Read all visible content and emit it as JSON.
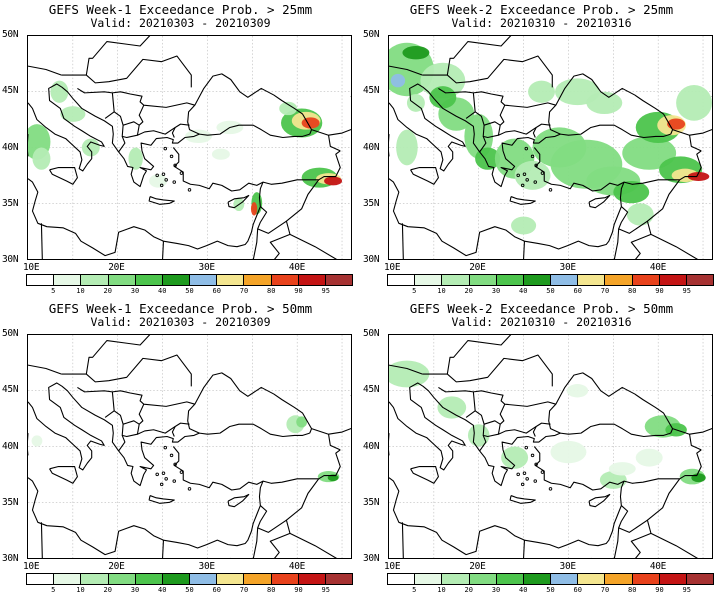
{
  "colorbar": {
    "labels": [
      "5",
      "10",
      "20",
      "30",
      "40",
      "50",
      "60",
      "70",
      "80",
      "90",
      "95"
    ],
    "colors": [
      "#ffffff",
      "#e6f8e6",
      "#b4ecb4",
      "#82dc82",
      "#4cc44c",
      "#1e9a1e",
      "#8fbde6",
      "#f4e690",
      "#f4a428",
      "#e8421c",
      "#c41414",
      "#a63232"
    ]
  },
  "axes": {
    "lat_labels": [
      "50N",
      "45N",
      "40N",
      "35N",
      "30N"
    ],
    "lon_labels": [
      "10E",
      "20E",
      "30E",
      "40E"
    ]
  },
  "panels": [
    {
      "title": "GEFS Week-1 Exceedance Prob. > 25mm",
      "valid": "Valid: 20210303 - 20210309",
      "intensity": "w1_25"
    },
    {
      "title": "GEFS Week-2 Exceedance Prob. > 25mm",
      "valid": "Valid: 20210310 - 20210316",
      "intensity": "w2_25"
    },
    {
      "title": "GEFS Week-1 Exceedance Prob. > 50mm",
      "valid": "Valid: 20210303 - 20210309",
      "intensity": "w1_50"
    },
    {
      "title": "GEFS Week-2 Exceedance Prob. > 50mm",
      "valid": "Valid: 20210310 - 20210316",
      "intensity": "w2_50"
    }
  ]
}
